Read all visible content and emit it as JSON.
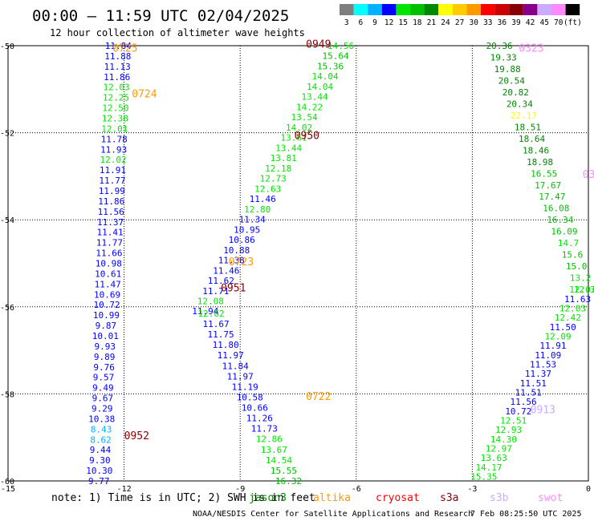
{
  "title": "00:00 – 11:59 UTC 02/04/2025",
  "subtitle": "12 hour collection of altimeter wave heights",
  "note": "note: 1) Time is in UTC; 2) SWH is in feet",
  "credit": "NOAA/NESDIS Center for Satellite Applications and Research",
  "generated": "7 Feb 08:25:50 UTC 2025",
  "colors": {
    "scale": [
      "#7f7f7f",
      "#00ffff",
      "#00b2ff",
      "#0000ff",
      "#00e600",
      "#00c000",
      "#008800",
      "#ffff00",
      "#ffcc00",
      "#ff9900",
      "#ff0000",
      "#cc0000",
      "#880000",
      "#880088",
      "#ccaaff",
      "#ff88ff",
      "#000000"
    ],
    "jason3": "#008800",
    "altika": "#ff9900",
    "cryosat": "#ff0000",
    "s3a": "#880000",
    "s3b": "#ccaaff",
    "swot": "#ff88ff"
  },
  "map_data": {
    "lon_range": [
      -15,
      0
    ],
    "lat_range": [
      -60,
      -50
    ],
    "lon_ticks": [
      -15,
      -12,
      -9,
      -6,
      -3,
      0
    ],
    "lat_ticks": [
      -50,
      -52,
      -54,
      -56,
      -58,
      -60
    ],
    "scale_labels": [
      "3",
      "6",
      "9",
      "12",
      "15",
      "18",
      "21",
      "24",
      "27",
      "30",
      "33",
      "36",
      "39",
      "42",
      "45",
      "70",
      "(ft)"
    ],
    "legend": [
      {
        "name": "jason3",
        "color": "jason3"
      },
      {
        "name": "altika",
        "color": "altika"
      },
      {
        "name": "cryosat",
        "color": "cryosat"
      },
      {
        "name": "s3a",
        "color": "s3a"
      },
      {
        "name": "s3b",
        "color": "s3b"
      },
      {
        "name": "swot",
        "color": "swot"
      }
    ],
    "pass_labels": [
      {
        "text": "0725",
        "lon": -12.3,
        "lat": -50.05,
        "color": "altika"
      },
      {
        "text": "0724",
        "lon": -11.8,
        "lat": -51.1,
        "color": "altika"
      },
      {
        "text": "0949",
        "lon": -7.3,
        "lat": -49.95,
        "color": "s3a"
      },
      {
        "text": "0950",
        "lon": -7.6,
        "lat": -52.05,
        "color": "s3a"
      },
      {
        "text": "0723",
        "lon": -9.3,
        "lat": -54.95,
        "color": "altika"
      },
      {
        "text": "0951",
        "lon": -9.5,
        "lat": -55.55,
        "color": "s3a"
      },
      {
        "text": "0722",
        "lon": -7.3,
        "lat": -58.05,
        "color": "altika"
      },
      {
        "text": "0952",
        "lon": -12.0,
        "lat": -58.95,
        "color": "s3a"
      },
      {
        "text": "0323",
        "lon": -1.8,
        "lat": -50.05,
        "color": "swot"
      },
      {
        "text": "0913",
        "lon": -1.5,
        "lat": -58.35,
        "color": "s3b"
      },
      {
        "text": "03",
        "lon": -0.15,
        "lat": -52.95,
        "color": "swot"
      }
    ],
    "tracks": [
      {
        "name": "track-a-descending",
        "start": [
          -12.15,
          -50.0
        ],
        "end": [
          -12.65,
          -60.0
        ],
        "values": [
          "11.84",
          "11.88",
          "11.13",
          "11.86",
          "12.03",
          "12.25",
          "12.50",
          "12.38",
          "12.01",
          "11.78",
          "11.93",
          "12.02",
          "11.91",
          "11.77",
          "11.99",
          "11.86",
          "11.56",
          "11.37",
          "11.41",
          "11.77",
          "11.66",
          "10.98",
          "10.61",
          "11.47",
          "10.69",
          "10.72",
          "10.99",
          "9.87",
          "10.01",
          "9.93",
          "9.89",
          "9.76",
          "9.57",
          "9.49",
          "9.67",
          "9.29",
          "10.38",
          "8.43",
          "8.62",
          "9.44",
          "9.30",
          "10.30",
          "9.77"
        ],
        "colors": [
          "#0000ff",
          "#0000ff",
          "#0000ff",
          "#0000ff",
          "#00e600",
          "#00e600",
          "#00e600",
          "#00e600",
          "#00e600",
          "#0000ff",
          "#0000ff",
          "#00e600",
          "#0000ff",
          "#0000ff",
          "#0000ff",
          "#0000ff",
          "#0000ff",
          "#0000ff",
          "#0000ff",
          "#0000ff",
          "#0000ff",
          "#0000ff",
          "#0000ff",
          "#0000ff",
          "#0000ff",
          "#0000ff",
          "#0000ff",
          "#0000ff",
          "#0000ff",
          "#0000ff",
          "#0000ff",
          "#0000ff",
          "#0000ff",
          "#0000ff",
          "#0000ff",
          "#0000ff",
          "#0000ff",
          "#00b2ff",
          "#00b2ff",
          "#0000ff",
          "#0000ff",
          "#0000ff",
          "#0000ff"
        ]
      },
      {
        "name": "track-b-ascending",
        "start": [
          -6.4,
          -50.0
        ],
        "end": [
          -9.9,
          -56.1
        ],
        "values": [
          "14.56",
          "15.64",
          "15.36",
          "14.04",
          "14.04",
          "13.44",
          "14.22",
          "13.54",
          "14.02",
          "13.61",
          "13.44",
          "13.81",
          "12.18",
          "12.73",
          "12.63",
          "11.46",
          "12.80",
          "11.34",
          "10.95",
          "10.86",
          "10.88",
          "11.38",
          "11.46",
          "11.62",
          "11.71",
          "12.08",
          "11.94"
        ],
        "colors": [
          "#00e600",
          "#00c000",
          "#00c000",
          "#00e600",
          "#00e600",
          "#00e600",
          "#00e600",
          "#00e600",
          "#00e600",
          "#00e600",
          "#00e600",
          "#00e600",
          "#00e600",
          "#00e600",
          "#00e600",
          "#0000ff",
          "#00e600",
          "#0000ff",
          "#0000ff",
          "#0000ff",
          "#0000ff",
          "#0000ff",
          "#0000ff",
          "#0000ff",
          "#0000ff",
          "#00e600",
          "#0000ff"
        ]
      },
      {
        "name": "track-c-descending",
        "start": [
          -9.75,
          -56.15
        ],
        "end": [
          -7.75,
          -60.0
        ],
        "values": [
          "12.62",
          "11.67",
          "11.75",
          "11.80",
          "11.97",
          "11.84",
          "11.97",
          "11.19",
          "10.58",
          "10.66",
          "11.26",
          "11.73",
          "12.86",
          "13.67",
          "14.54",
          "15.55",
          "16.32"
        ],
        "colors": [
          "#00e600",
          "#0000ff",
          "#0000ff",
          "#0000ff",
          "#0000ff",
          "#0000ff",
          "#0000ff",
          "#0000ff",
          "#0000ff",
          "#0000ff",
          "#0000ff",
          "#0000ff",
          "#00e600",
          "#00e600",
          "#00e600",
          "#00c000",
          "#00c000"
        ]
      },
      {
        "name": "track-d-east",
        "start": [
          -2.3,
          -50.0
        ],
        "end": [
          -0.1,
          -55.6
        ],
        "values": [
          "20.36",
          "19.33",
          "19.88",
          "20.54",
          "20.82",
          "20.34",
          "22.17",
          "18.51",
          "18.64",
          "18.46",
          "18.98",
          "16.55",
          "17.67",
          "17.47",
          "16.08",
          "16.34",
          "16.09",
          "14.7",
          "15.6",
          "15.0",
          "13.2",
          "12.3"
        ],
        "colors": [
          "#008800",
          "#008800",
          "#008800",
          "#008800",
          "#008800",
          "#008800",
          "#ffff00",
          "#008800",
          "#008800",
          "#008800",
          "#008800",
          "#00c000",
          "#00c000",
          "#00c000",
          "#00c000",
          "#00c000",
          "#00c000",
          "#00e600",
          "#00c000",
          "#00c000",
          "#00e600",
          "#00e600"
        ]
      },
      {
        "name": "track-e-west",
        "start": [
          -0.15,
          -55.6
        ],
        "end": [
          -2.7,
          -59.9
        ],
        "values": [
          "12.07",
          "11.63",
          "12.03",
          "12.42",
          "11.50",
          "12.09",
          "11.91",
          "11.09",
          "11.53",
          "11.37",
          "11.51",
          "11.51",
          "11.56",
          "10.72",
          "12.51",
          "12.93",
          "14.30",
          "12.97",
          "13.63",
          "14.17",
          "15.35"
        ],
        "colors": [
          "#00e600",
          "#0000ff",
          "#00e600",
          "#00e600",
          "#0000ff",
          "#00e600",
          "#0000ff",
          "#0000ff",
          "#0000ff",
          "#0000ff",
          "#0000ff",
          "#0000ff",
          "#0000ff",
          "#0000ff",
          "#00e600",
          "#00e600",
          "#00e600",
          "#00e600",
          "#00e600",
          "#00e600",
          "#00e600"
        ]
      }
    ]
  }
}
